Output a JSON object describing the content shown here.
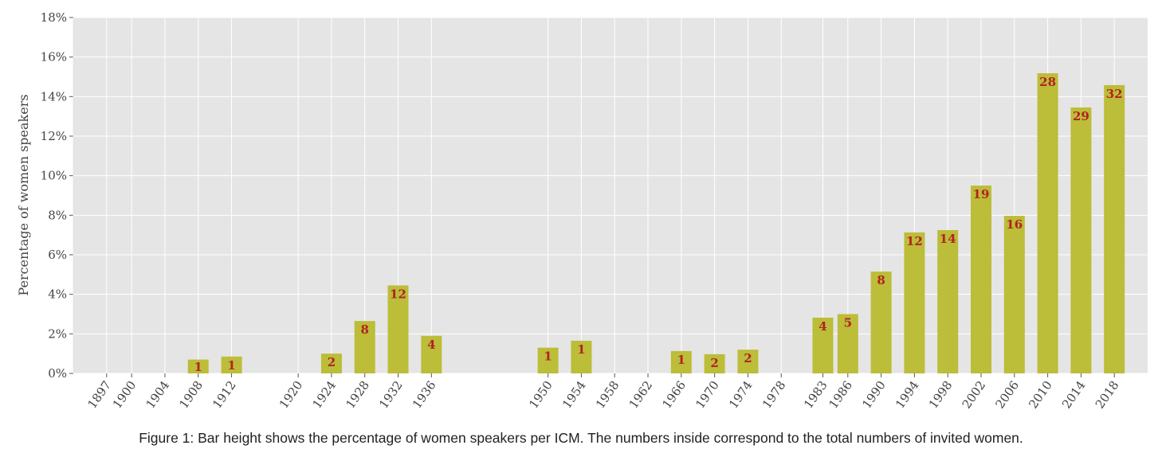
{
  "chart_data": {
    "type": "bar",
    "title": "",
    "xlabel": "",
    "ylabel": "Percentage of women speakers",
    "ylim": [
      0,
      18
    ],
    "xlim": [
      1893,
      2022
    ],
    "grid": true,
    "yticks": [
      "0%",
      "2%",
      "4%",
      "6%",
      "8%",
      "10%",
      "12%",
      "14%",
      "16%",
      "18%"
    ],
    "ytick_values": [
      0,
      2,
      4,
      6,
      8,
      10,
      12,
      14,
      16,
      18
    ],
    "categories": [
      "1897",
      "1900",
      "1904",
      "1908",
      "1912",
      "1920",
      "1924",
      "1928",
      "1932",
      "1936",
      "1950",
      "1954",
      "1958",
      "1962",
      "1966",
      "1970",
      "1974",
      "1978",
      "1983",
      "1986",
      "1990",
      "1994",
      "1998",
      "2002",
      "2006",
      "2010",
      "2014",
      "2018"
    ],
    "values": [
      0,
      0,
      0,
      0.7,
      0.85,
      0,
      1.0,
      2.65,
      4.45,
      1.9,
      1.3,
      1.65,
      0,
      0,
      1.13,
      0.97,
      1.2,
      0,
      2.82,
      3.0,
      5.15,
      7.13,
      7.25,
      9.5,
      7.97,
      15.18,
      13.45,
      14.58
    ],
    "counts": [
      "",
      "",
      "",
      "1",
      "1",
      "",
      "2",
      "8",
      "12",
      "4",
      "1",
      "1",
      "",
      "",
      "1",
      "2",
      "2",
      "",
      "4",
      "5",
      "8",
      "12",
      "14",
      "19",
      "16",
      "28",
      "29",
      "32"
    ],
    "colors": {
      "bar": "#bcbd38",
      "label": "#b22222",
      "background": "#e5e5e5",
      "grid": "#ffffff"
    }
  },
  "caption": "Figure 1: Bar height shows the percentage of women speakers per ICM. The numbers inside correspond to the total numbers of invited women."
}
